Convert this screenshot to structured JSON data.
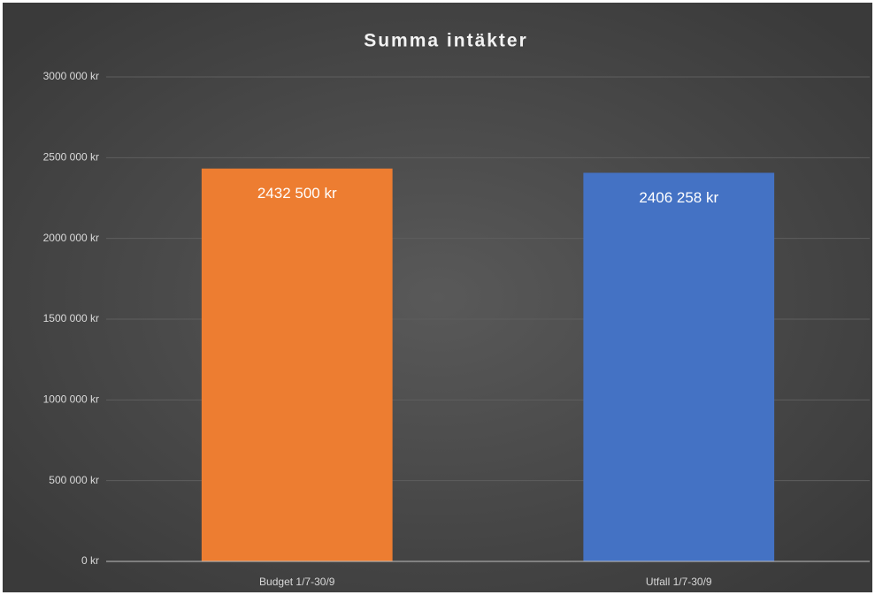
{
  "chart_data": {
    "type": "bar",
    "title": "Summa intäkter",
    "categories": [
      "Budget 1/7-30/9",
      "Utfall 1/7-30/9"
    ],
    "values": [
      2432500,
      2406258
    ],
    "value_labels": [
      "2432 500 kr",
      "2406 258 kr"
    ],
    "colors": [
      "#ed7d31",
      "#4472c4"
    ],
    "ylim": [
      0,
      3000000
    ],
    "yticks": [
      {
        "value": 0,
        "label": "0 kr"
      },
      {
        "value": 500000,
        "label": "500 000 kr"
      },
      {
        "value": 1000000,
        "label": "1000 000 kr"
      },
      {
        "value": 1500000,
        "label": "1500 000 kr"
      },
      {
        "value": 2000000,
        "label": "2000 000 kr"
      },
      {
        "value": 2500000,
        "label": "2500 000 kr"
      },
      {
        "value": 3000000,
        "label": "3000 000 kr"
      }
    ],
    "grid": true
  }
}
